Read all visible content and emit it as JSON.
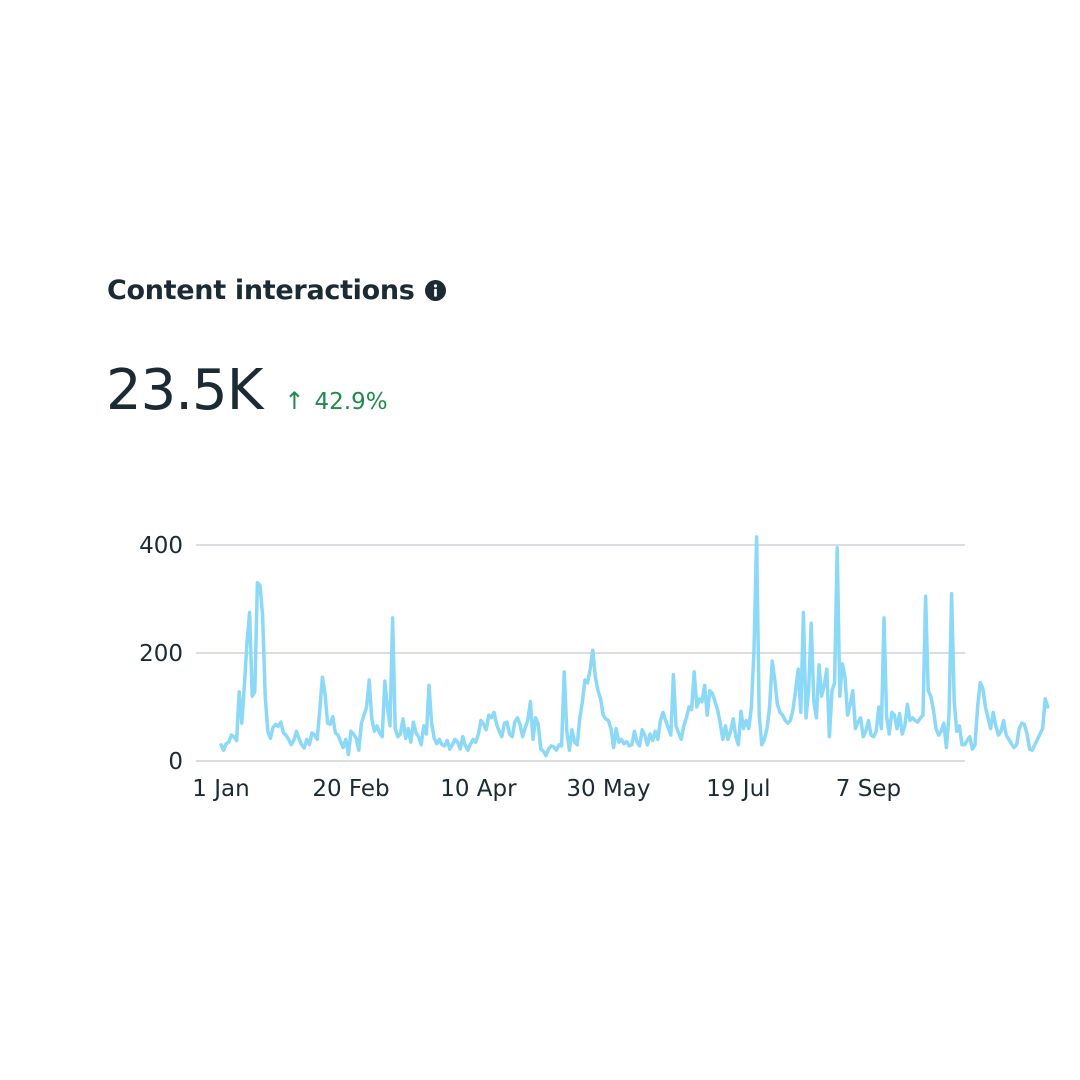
{
  "card": {
    "title": "Content interactions",
    "info_icon": "info-icon",
    "metric_value": "23.5K",
    "trend": {
      "direction_icon": "arrow-up-icon",
      "arrow_glyph": "↑",
      "value": "42.9%",
      "color": "#1f8a4c"
    }
  },
  "colors": {
    "line": "#8cd8f7",
    "grid": "#dadde1",
    "text": "#1c2b33",
    "positive": "#1f8a4c"
  },
  "chart_data": {
    "type": "line",
    "title": "",
    "xlabel": "",
    "ylabel": "",
    "ylim": [
      0,
      400
    ],
    "yticks": [
      0,
      200,
      400
    ],
    "grid": true,
    "x_start": "1 Jan",
    "x_tick_labels": [
      "1 Jan",
      "20 Feb",
      "10 Apr",
      "30 May",
      "19 Jul",
      "7 Sep"
    ],
    "x_tick_day_index": [
      0,
      50,
      99,
      149,
      199,
      249
    ],
    "series": [
      {
        "values": [
          30,
          20,
          32,
          35,
          48,
          45,
          38,
          128,
          70,
          140,
          220,
          275,
          120,
          128,
          330,
          325,
          270,
          120,
          55,
          42,
          62,
          68,
          64,
          72,
          52,
          48,
          40,
          30,
          38,
          55,
          42,
          30,
          24,
          40,
          30,
          52,
          48,
          40,
          95,
          155,
          125,
          70,
          68,
          82,
          52,
          48,
          36,
          25,
          40,
          12,
          55,
          50,
          42,
          20,
          70,
          85,
          100,
          150,
          78,
          55,
          65,
          52,
          45,
          148,
          100,
          65,
          265,
          60,
          45,
          50,
          78,
          42,
          60,
          35,
          72,
          52,
          45,
          30,
          65,
          50,
          140,
          70,
          42,
          32,
          40,
          30,
          28,
          38,
          22,
          30,
          40,
          35,
          22,
          45,
          28,
          20,
          32,
          40,
          35,
          50,
          75,
          68,
          58,
          85,
          80,
          90,
          68,
          55,
          45,
          70,
          72,
          50,
          45,
          72,
          80,
          68,
          45,
          62,
          75,
          110,
          40,
          80,
          68,
          22,
          18,
          10,
          22,
          28,
          26,
          20,
          30,
          28,
          165,
          55,
          20,
          58,
          35,
          30,
          80,
          110,
          150,
          145,
          170,
          205,
          155,
          130,
          115,
          85,
          78,
          75,
          60,
          25,
          60,
          35,
          40,
          32,
          36,
          28,
          30,
          55,
          35,
          28,
          58,
          48,
          30,
          50,
          38,
          55,
          40,
          75,
          90,
          75,
          62,
          48,
          160,
          65,
          52,
          40,
          65,
          80,
          100,
          95,
          165,
          100,
          115,
          110,
          140,
          85,
          130,
          125,
          110,
          95,
          70,
          40,
          65,
          40,
          55,
          78,
          45,
          30,
          92,
          60,
          75,
          60,
          100,
          205,
          415,
          85,
          30,
          40,
          60,
          100,
          185,
          150,
          105,
          90,
          85,
          75,
          70,
          75,
          95,
          130,
          170,
          90,
          275,
          80,
          130,
          255,
          110,
          80,
          178,
          120,
          140,
          170,
          45,
          130,
          145,
          395,
          120,
          180,
          155,
          85,
          105,
          130,
          60,
          72,
          80,
          45,
          55,
          75,
          48,
          45,
          55,
          100,
          60,
          265,
          82,
          50,
          90,
          85,
          60,
          88,
          50,
          65,
          105,
          75,
          80,
          75,
          72,
          80,
          85,
          305,
          130,
          120,
          95,
          60,
          48,
          55,
          70,
          25,
          85,
          310,
          110,
          55,
          65,
          30,
          30,
          38,
          45,
          22,
          30,
          100,
          145,
          135,
          100,
          80,
          60,
          90,
          65,
          48,
          55,
          75,
          48,
          40,
          32,
          25,
          30,
          60,
          70,
          68,
          50,
          22,
          20,
          30,
          40,
          50,
          60,
          115,
          100
        ]
      }
    ]
  }
}
